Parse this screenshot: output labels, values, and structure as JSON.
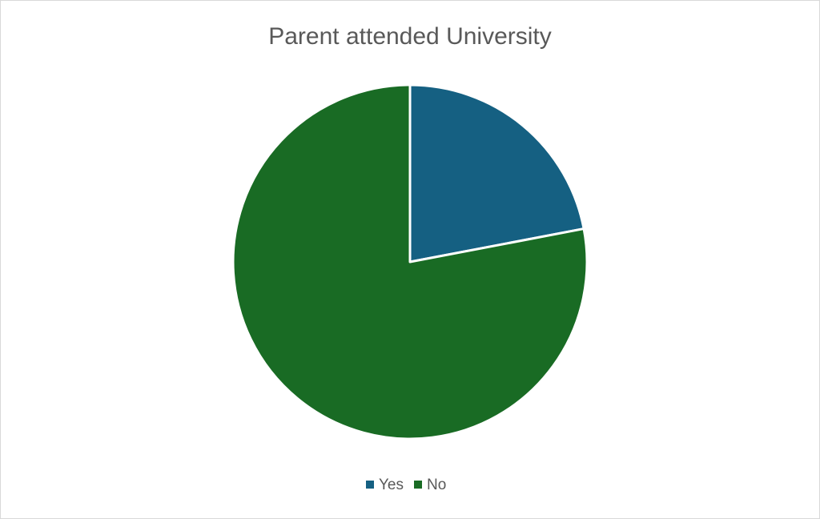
{
  "chart_data": {
    "type": "pie",
    "title": "Parent attended University",
    "categories": [
      "Yes",
      "No"
    ],
    "values": [
      22,
      78
    ],
    "colors": [
      "#156082",
      "#196b24"
    ],
    "legend": "bottom"
  }
}
